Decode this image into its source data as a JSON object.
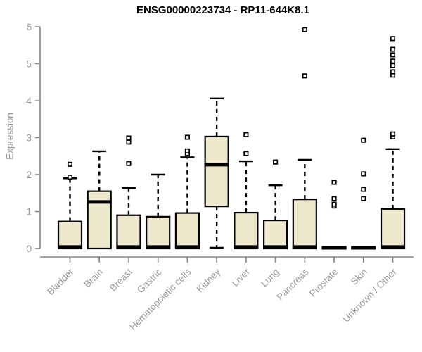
{
  "chart_data": {
    "type": "boxplot",
    "title": "ENSG00000223734 - RP11-644K8.1",
    "ylabel": "Expression",
    "xlabel": "",
    "ylim": [
      0,
      6
    ],
    "yticks": [
      0,
      1,
      2,
      3,
      4,
      5,
      6
    ],
    "grid": false,
    "legend": "none",
    "categories": [
      "Bladder",
      "Brain",
      "Breast",
      "Gastric",
      "Hematopoietic cells",
      "Kidney",
      "Liver",
      "Lung",
      "Pancreas",
      "Prostate",
      "Skin",
      "Unknown / Other"
    ],
    "series": [
      {
        "name": "Bladder",
        "whisker_low": 0,
        "q1": 0,
        "median": 0.04,
        "q3": 0.73,
        "whisker_high": 1.9,
        "outliers": [
          1.93,
          2.28
        ]
      },
      {
        "name": "Brain",
        "whisker_low": 0,
        "q1": 0,
        "median": 1.26,
        "q3": 1.55,
        "whisker_high": 2.63,
        "outliers": []
      },
      {
        "name": "Breast",
        "whisker_low": 0,
        "q1": 0,
        "median": 0.04,
        "q3": 0.9,
        "whisker_high": 1.64,
        "outliers": [
          2.3,
          2.88,
          2.99
        ]
      },
      {
        "name": "Gastric",
        "whisker_low": 0,
        "q1": 0,
        "median": 0.04,
        "q3": 0.86,
        "whisker_high": 2.0,
        "outliers": []
      },
      {
        "name": "Hematopoietic cells",
        "whisker_low": 0,
        "q1": 0,
        "median": 0.04,
        "q3": 0.96,
        "whisker_high": 2.47,
        "outliers": [
          2.57,
          2.64,
          3.01
        ]
      },
      {
        "name": "Kidney",
        "whisker_low": 0.02,
        "q1": 1.14,
        "median": 2.27,
        "q3": 3.03,
        "whisker_high": 4.06,
        "outliers": []
      },
      {
        "name": "Liver",
        "whisker_low": 0,
        "q1": 0,
        "median": 0.04,
        "q3": 0.97,
        "whisker_high": 2.36,
        "outliers": [
          2.57,
          3.08
        ]
      },
      {
        "name": "Lung",
        "whisker_low": 0,
        "q1": 0,
        "median": 0.04,
        "q3": 0.76,
        "whisker_high": 1.71,
        "outliers": [
          2.34
        ]
      },
      {
        "name": "Pancreas",
        "whisker_low": 0,
        "q1": 0,
        "median": 0.04,
        "q3": 1.33,
        "whisker_high": 2.4,
        "outliers": [
          4.67,
          5.92
        ]
      },
      {
        "name": "Prostate",
        "whisker_low": 0,
        "q1": 0,
        "median": 0.02,
        "q3": 0.03,
        "whisker_high": 0.03,
        "outliers": [
          1.15,
          1.2,
          1.35,
          1.79
        ]
      },
      {
        "name": "Skin",
        "whisker_low": 0,
        "q1": 0,
        "median": 0.02,
        "q3": 0.03,
        "whisker_high": 0.03,
        "outliers": [
          1.35,
          1.6,
          2.02,
          2.93
        ]
      },
      {
        "name": "Unknown / Other",
        "whisker_low": 0,
        "q1": 0,
        "median": 0.04,
        "q3": 1.07,
        "whisker_high": 2.69,
        "outliers": [
          3.02,
          3.1,
          4.69,
          4.78,
          4.95,
          5.07,
          5.24,
          5.39,
          5.68
        ]
      }
    ]
  },
  "colors": {
    "box_fill": "#EEE8CD",
    "box_stroke": "#000000",
    "median": "#000000",
    "whisker": "#000000",
    "outlier_stroke": "#000000",
    "outlier_fill": "#ffffff",
    "axis": "#878787",
    "tick_text": "#9a9a9a",
    "title_text": "#000000",
    "background": "#ffffff"
  }
}
